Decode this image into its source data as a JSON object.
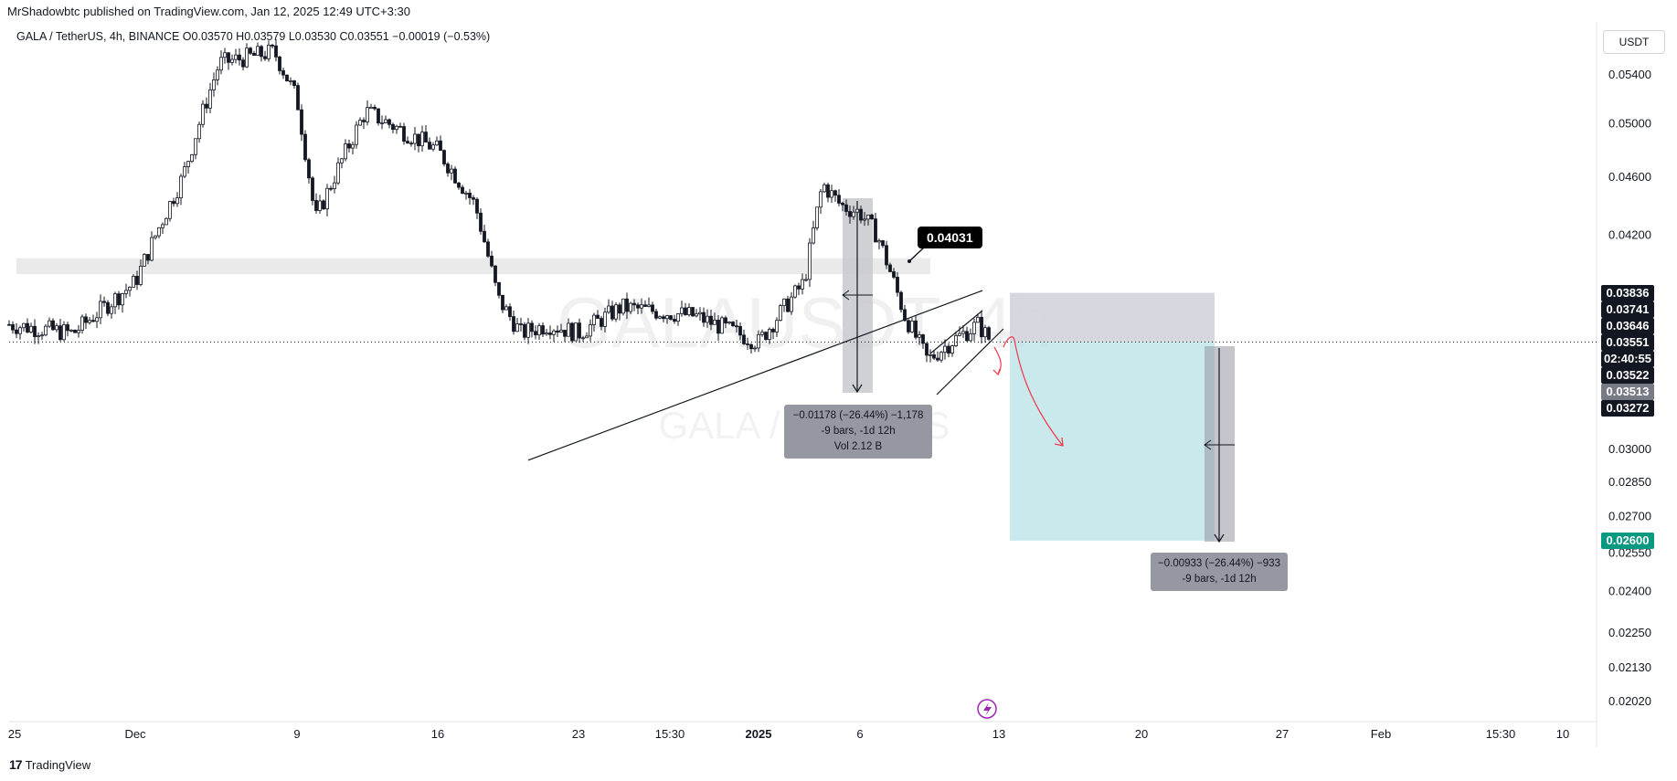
{
  "header": {
    "publisher": "MrShadowbtc published on TradingView.com, Jan 12, 2025 12:49 UTC+3:30",
    "symbol_line": "GALA / TetherUS, 4h, BINANCE  O0.03570  H0.03579  L0.03530  C0.03551  −0.00019 (−0.53%)",
    "currency": "USDT"
  },
  "watermark": {
    "symbol": "GALAUSDT, 4h",
    "name": "GALA / TetherUS"
  },
  "footer": {
    "brand": "TradingView"
  },
  "price_tags": [
    {
      "label": "0.03836",
      "value": 0.03836,
      "bg": "#131722",
      "fg": "#ffffff"
    },
    {
      "label": "0.03741",
      "value": 0.03741,
      "bg": "#131722",
      "fg": "#ffffff"
    },
    {
      "label": "0.03646",
      "value": 0.03646,
      "bg": "#131722",
      "fg": "#ffffff"
    },
    {
      "label": "0.03551",
      "value": 0.03551,
      "bg": "#131722",
      "fg": "#ffffff"
    },
    {
      "label": "02:40:55",
      "value": 0.03537,
      "bg": "#131722",
      "fg": "#ffffff"
    },
    {
      "label": "0.03522",
      "value": 0.03522,
      "bg": "#131722",
      "fg": "#ffffff"
    },
    {
      "label": "0.03513",
      "value": 0.03513,
      "bg": "#787b86",
      "fg": "#ffffff"
    },
    {
      "label": "0.03272",
      "value": 0.03272,
      "bg": "#131722",
      "fg": "#ffffff"
    },
    {
      "label": "0.02600",
      "value": 0.026,
      "bg": "#089981",
      "fg": "#ffffff"
    }
  ],
  "annotations": {
    "callout": "0.04031",
    "measure1": [
      "−0.01178 (−26.44%) −1,178",
      "-9 bars, -1d 12h",
      "Vol 2.12 B"
    ],
    "measure2": [
      "−0.00933 (−26.44%) −933",
      "-9 bars, -1d 12h"
    ]
  },
  "colors": {
    "accent_teal": "#089981",
    "target_fill": "#b2e0e6",
    "stop_fill": "#d1d4dc",
    "forecast_arrow": "#f23645",
    "bolt": "#9c27b0"
  },
  "chart_data": {
    "type": "candlestick",
    "title": "GALA / TetherUS, 4h, BINANCE",
    "yscale": "log",
    "ylim": [
      0.0197,
      0.057
    ],
    "y_ticks": [
      0.054,
      0.05,
      0.046,
      0.042,
      0.03,
      0.0285,
      0.027,
      0.0255,
      0.024,
      0.0225,
      0.0213,
      0.0202
    ],
    "y_tick_labels": [
      "0.05400",
      "0.05000",
      "0.04600",
      "0.04200",
      "0.03000",
      "0.02850",
      "0.02700",
      "0.02550",
      "0.02400",
      "0.02250",
      "0.02130",
      "0.02020"
    ],
    "x_tick_labels": [
      "25",
      "Dec",
      "9",
      "16",
      "23",
      "15:30",
      "2025",
      "6",
      "13",
      "20",
      "27",
      "Feb",
      "15:30",
      "10"
    ],
    "last_price": 0.03551,
    "price_path_x": [
      "Nov 25",
      "Nov 28",
      "Dec 1",
      "Dec 3",
      "Dec 5",
      "Dec 8",
      "Dec 9",
      "Dec 10",
      "Dec 12",
      "Dec 16",
      "Dec 18",
      "Dec 19",
      "Dec 20",
      "Dec 21",
      "Dec 23",
      "Dec 25",
      "Dec 28",
      "Dec 31",
      "Jan 2",
      "Jan 3",
      "Jan 5",
      "Jan 6",
      "Jan 7",
      "Jan 8",
      "Jan 9",
      "Jan 10",
      "Jan 11",
      "Jan 12"
    ],
    "price_path_y": [
      0.0365,
      0.036,
      0.039,
      0.046,
      0.055,
      0.056,
      0.052,
      0.043,
      0.051,
      0.048,
      0.044,
      0.038,
      0.036,
      0.0365,
      0.036,
      0.0375,
      0.037,
      0.0355,
      0.039,
      0.0455,
      0.044,
      0.0435,
      0.042,
      0.037,
      0.0345,
      0.0355,
      0.0365,
      0.03551
    ],
    "zone": {
      "from": 0.0395,
      "to": 0.0405
    },
    "trendline": {
      "from": 0.0295,
      "to": 0.0385
    },
    "target": 0.026,
    "stop": 0.03836,
    "entry": 0.03551
  }
}
